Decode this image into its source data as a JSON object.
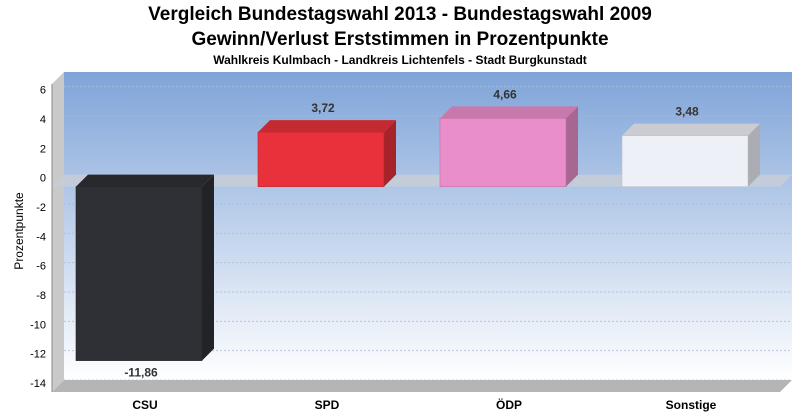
{
  "chart_data": {
    "type": "bar",
    "title": "Vergleich Bundestagswahl 2013 - Bundestagswahl 2009",
    "subtitle": "Gewinn/Verlust Erststimmen in Prozentpunkte",
    "subtitle2": "Wahlkreis Kulmbach - Landkreis Lichtenfels - Stadt Burgkunstadt",
    "ylabel": "Prozentpunkte",
    "xlabel": "",
    "ylim": [
      -14,
      7
    ],
    "yticks": [
      6,
      4,
      2,
      0,
      -2,
      -4,
      -6,
      -8,
      -10,
      -12,
      -14
    ],
    "categories": [
      "CSU",
      "SPD",
      "ÖDP",
      "Sonstige"
    ],
    "values": [
      -11.86,
      3.72,
      4.66,
      3.48
    ],
    "value_labels": [
      "-11,86",
      "3,72",
      "4,66",
      "3,48"
    ],
    "colors": [
      "#2e3035",
      "#e8313b",
      "#ea8ecb",
      "#eef0f7"
    ],
    "grid": true,
    "legend": "none"
  }
}
